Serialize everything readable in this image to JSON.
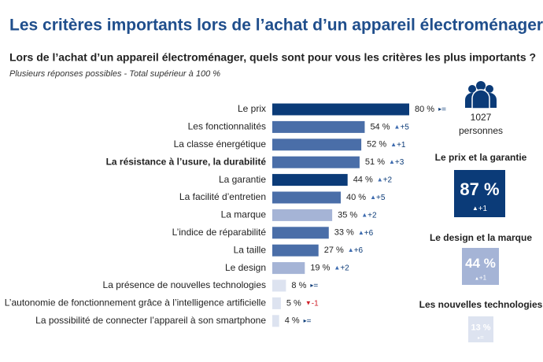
{
  "chart_data": {
    "type": "bar",
    "orientation": "horizontal",
    "title": "Les critères importants lors de l’achat d’un appareil électroménager",
    "subtitle": "Lors de l’achat d’un appareil électroménager, quels sont pour vous les critères les plus importants ?",
    "note": "Plusieurs réponses possibles - Total supérieur à 100 %",
    "categories": [
      "Le prix",
      "Les fonctionnalités",
      "La classe énergétique",
      "La résistance à l’usure, la durabilité",
      "La garantie",
      "La facilité d’entretien",
      "La marque",
      "L’indice de réparabilité",
      "La taille",
      "Le design",
      "La présence de nouvelles technologies",
      "L’autonomie de fonctionnement grâce à l’intelligence artificielle",
      "La possibilité de connecter l’appareil à son smartphone"
    ],
    "bold": [
      false,
      false,
      false,
      true,
      false,
      false,
      false,
      false,
      false,
      false,
      false,
      false,
      false
    ],
    "values": [
      80,
      54,
      52,
      51,
      44,
      40,
      35,
      33,
      27,
      19,
      8,
      5,
      4
    ],
    "value_labels": [
      "80 %",
      "54 %",
      "52 %",
      "51 %",
      "44 %",
      "40 %",
      "35 %",
      "33 %",
      "27 %",
      "19 %",
      "8 %",
      "5 %",
      "4 %"
    ],
    "colors": [
      "#0b3b78",
      "#4a6ea8",
      "#4a6ea8",
      "#4a6ea8",
      "#0b3b78",
      "#4a6ea8",
      "#a5b4d6",
      "#4a6ea8",
      "#4a6ea8",
      "#a5b4d6",
      "#dde3f0",
      "#dde3f0",
      "#dde3f0"
    ],
    "changes": [
      {
        "dir": "flat",
        "label": "="
      },
      {
        "dir": "up",
        "label": "+5"
      },
      {
        "dir": "up",
        "label": "+1"
      },
      {
        "dir": "up",
        "label": "+3"
      },
      {
        "dir": "up",
        "label": "+2"
      },
      {
        "dir": "up",
        "label": "+5"
      },
      {
        "dir": "up",
        "label": "+2"
      },
      {
        "dir": "up",
        "label": "+6"
      },
      {
        "dir": "up",
        "label": "+6"
      },
      {
        "dir": "up",
        "label": "+2"
      },
      {
        "dir": "flat",
        "label": "="
      },
      {
        "dir": "down",
        "label": "-1"
      },
      {
        "dir": "flat",
        "label": "="
      }
    ],
    "respondents": "1027",
    "respondents_label": "personnes",
    "groups": [
      {
        "title": "Le prix et la garantie",
        "value": 87,
        "value_label": "87 %",
        "change": {
          "dir": "up",
          "label": "+1"
        },
        "color": "#0b3b78"
      },
      {
        "title": "Le design et la marque",
        "value": 44,
        "value_label": "44 %",
        "change": {
          "dir": "up",
          "label": "+1"
        },
        "color": "#a5b4d6"
      },
      {
        "title": "Les nouvelles technologies",
        "value": 13,
        "value_label": "13 %",
        "change": {
          "dir": "flat",
          "label": "="
        },
        "color": "#dde3f0"
      }
    ]
  }
}
